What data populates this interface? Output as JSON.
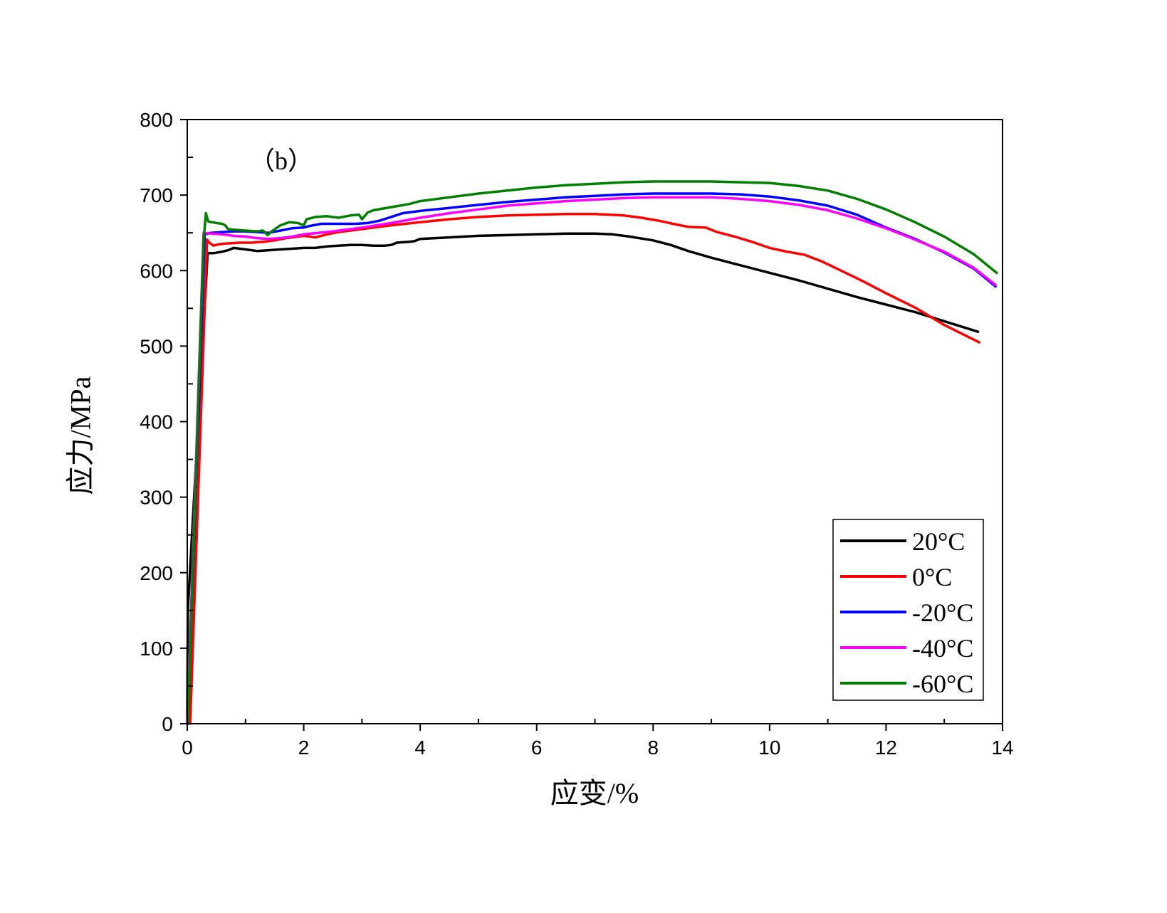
{
  "chart_data": {
    "type": "line",
    "annotation": "（b）",
    "xlabel": "应变/%",
    "ylabel": "应力/MPa",
    "xlim": [
      0,
      14
    ],
    "ylim": [
      0,
      800
    ],
    "xticks": [
      0,
      2,
      4,
      6,
      8,
      10,
      12,
      14
    ],
    "yticks": [
      0,
      100,
      200,
      300,
      400,
      500,
      600,
      700,
      800
    ],
    "grid": false,
    "legend_position": "bottom-right",
    "series": [
      {
        "name": "20°C",
        "color": "#000000",
        "x": [
          0,
          0.01,
          0.35,
          0.45,
          0.6,
          0.7,
          0.8,
          0.9,
          1.0,
          1.2,
          1.4,
          1.6,
          1.8,
          2.0,
          2.2,
          2.4,
          2.6,
          2.8,
          3.0,
          3.2,
          3.4,
          3.5,
          3.6,
          3.8,
          3.9,
          4.0,
          4.5,
          5.0,
          5.5,
          6.0,
          6.5,
          7.0,
          7.3,
          7.6,
          8.0,
          8.3,
          8.6,
          9.0,
          9.5,
          10.0,
          10.5,
          11.0,
          11.5,
          12.0,
          12.5,
          13.0,
          13.58
        ],
        "y": [
          0,
          150,
          623,
          623,
          625,
          627,
          630,
          629,
          628,
          626,
          627,
          628,
          629,
          630,
          630,
          632,
          633,
          634,
          634,
          633,
          633,
          634,
          637,
          638,
          639,
          642,
          644,
          646,
          647,
          648,
          649,
          649,
          648,
          645,
          640,
          634,
          626,
          617,
          607,
          597,
          587,
          576,
          565,
          555,
          545,
          533,
          519
        ]
      },
      {
        "name": "0°C",
        "color": "#FF0000",
        "x": [
          0.05,
          0.34,
          0.38,
          0.45,
          0.55,
          0.7,
          0.9,
          1.1,
          1.3,
          1.5,
          1.7,
          2.0,
          2.2,
          2.4,
          2.6,
          2.8,
          3.0,
          3.5,
          4.0,
          4.5,
          5.0,
          5.5,
          6.0,
          6.5,
          7.0,
          7.5,
          7.8,
          8.1,
          8.4,
          8.6,
          8.9,
          9.1,
          9.4,
          9.7,
          10.0,
          10.3,
          10.6,
          10.9,
          11.2,
          11.6,
          12.0,
          12.5,
          13.0,
          13.6
        ],
        "y": [
          0,
          641,
          637,
          633,
          635,
          636,
          637,
          637,
          638,
          640,
          643,
          646,
          644,
          648,
          651,
          653,
          655,
          660,
          664,
          668,
          671,
          673,
          674,
          675,
          675,
          673,
          670,
          666,
          661,
          658,
          657,
          651,
          645,
          638,
          630,
          625,
          621,
          612,
          601,
          586,
          570,
          551,
          528,
          505
        ]
      },
      {
        "name": "-20°C",
        "color": "#0000FF",
        "x": [
          0.01,
          0.3,
          0.4,
          0.6,
          0.8,
          1.0,
          1.2,
          1.4,
          1.6,
          1.8,
          2.0,
          2.1,
          2.3,
          2.6,
          2.9,
          3.1,
          3.3,
          3.5,
          3.7,
          4.0,
          4.5,
          5.0,
          5.5,
          6.0,
          6.5,
          7.0,
          7.5,
          8.0,
          8.5,
          9.0,
          9.5,
          10.0,
          10.5,
          11.0,
          11.5,
          12.0,
          12.5,
          13.0,
          13.5,
          13.88
        ],
        "y": [
          0,
          648,
          650,
          651,
          652,
          652,
          651,
          650,
          653,
          656,
          657,
          659,
          662,
          662,
          662,
          663,
          666,
          671,
          676,
          679,
          683,
          687,
          691,
          694,
          697,
          699,
          701,
          702,
          702,
          702,
          701,
          698,
          693,
          686,
          674,
          657,
          642,
          624,
          603,
          579
        ]
      },
      {
        "name": "-40°C",
        "color": "#FF00FF",
        "x": [
          0.0,
          0.28,
          0.4,
          0.6,
          0.8,
          1.0,
          1.2,
          1.4,
          1.6,
          1.8,
          2.0,
          2.5,
          3.0,
          3.5,
          4.0,
          4.5,
          5.0,
          5.5,
          6.0,
          6.5,
          7.0,
          7.5,
          8.0,
          8.5,
          9.0,
          9.5,
          10.0,
          10.5,
          11.0,
          11.5,
          12.0,
          12.5,
          13.0,
          13.5,
          13.88
        ],
        "y": [
          0,
          650,
          649,
          648,
          646,
          645,
          643,
          642,
          643,
          645,
          648,
          652,
          657,
          663,
          670,
          676,
          681,
          686,
          689,
          692,
          694,
          696,
          697,
          697,
          697,
          695,
          692,
          687,
          680,
          669,
          656,
          641,
          625,
          604,
          581
        ]
      },
      {
        "name": "-60°C",
        "color": "#008000",
        "x": [
          0.01,
          0.28,
          0.32,
          0.36,
          0.5,
          0.6,
          0.65,
          0.7,
          0.8,
          1.0,
          1.2,
          1.3,
          1.38,
          1.45,
          1.6,
          1.75,
          1.9,
          2.0,
          2.05,
          2.2,
          2.4,
          2.6,
          2.8,
          2.95,
          3.0,
          3.1,
          3.2,
          3.5,
          3.8,
          4.0,
          4.5,
          5.0,
          5.5,
          6.0,
          6.5,
          7.0,
          7.5,
          8.0,
          8.5,
          9.0,
          9.5,
          10.0,
          10.5,
          11.0,
          11.5,
          12.0,
          12.5,
          13.0,
          13.5,
          13.9
        ],
        "y": [
          0,
          640,
          676,
          665,
          663,
          662,
          660,
          655,
          654,
          653,
          652,
          653,
          647,
          652,
          660,
          664,
          663,
          660,
          668,
          671,
          672,
          670,
          673,
          674,
          668,
          677,
          680,
          684,
          688,
          692,
          697,
          702,
          706,
          710,
          713,
          715,
          717,
          718,
          718,
          718,
          717,
          716,
          712,
          706,
          695,
          681,
          664,
          645,
          622,
          597
        ]
      }
    ]
  }
}
